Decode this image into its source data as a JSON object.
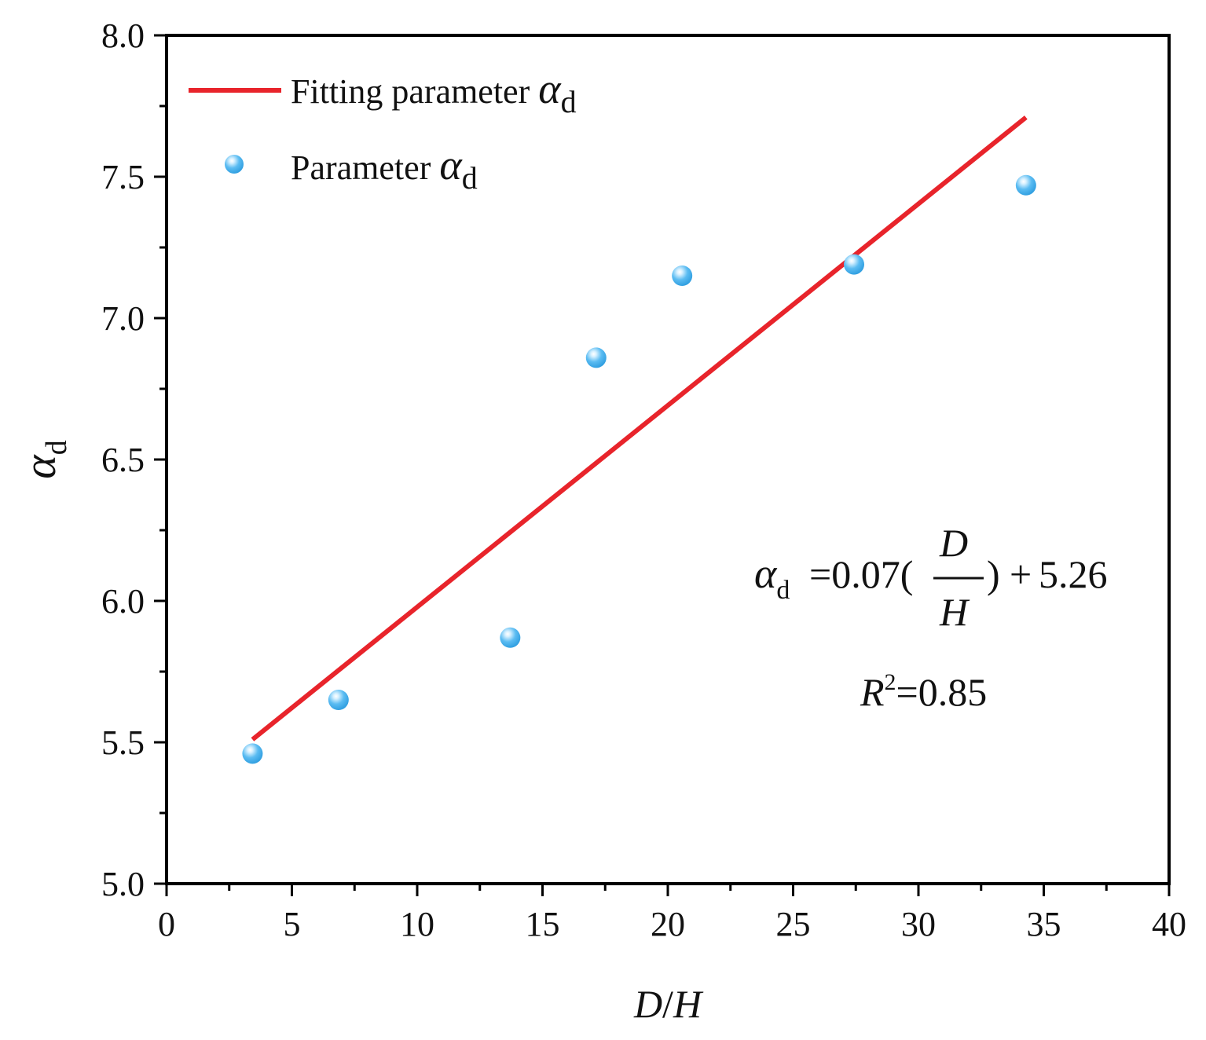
{
  "chart_data": {
    "type": "scatter",
    "title": "",
    "xlabel": "D/H",
    "ylabel": "αd",
    "ylabel_parts": {
      "symbol": "α",
      "subscript": "d"
    },
    "xlabel_parts": {
      "num": "D",
      "sep": "/",
      "den": "H"
    },
    "xlim": [
      0,
      40
    ],
    "ylim": [
      5.0,
      8.0
    ],
    "x_ticks": [
      0,
      5,
      10,
      15,
      20,
      25,
      30,
      35,
      40
    ],
    "x_tick_labels": [
      "0",
      "5",
      "10",
      "15",
      "20",
      "25",
      "30",
      "35",
      "40"
    ],
    "y_ticks": [
      5.0,
      5.5,
      6.0,
      6.5,
      7.0,
      7.5,
      8.0
    ],
    "y_tick_labels": [
      "5.0",
      "5.5",
      "6.0",
      "6.5",
      "7.0",
      "7.5",
      "8.0"
    ],
    "x_minor_step": 2.5,
    "y_minor_step": 0.25,
    "grid": false,
    "series": [
      {
        "name": "Parameter αd",
        "kind": "scatter",
        "color": "#5bbcf2",
        "x": [
          3.43,
          6.86,
          13.71,
          17.14,
          20.57,
          27.43,
          34.29
        ],
        "y": [
          5.46,
          5.65,
          5.87,
          6.86,
          7.15,
          7.19,
          7.47
        ]
      },
      {
        "name": "Fitting parameter αd",
        "kind": "line",
        "color": "#e8242b",
        "x": [
          3.43,
          34.29
        ],
        "y": [
          5.51,
          7.71
        ]
      }
    ],
    "legend": {
      "placement": "top-left",
      "items": [
        {
          "label": "Fitting parameter ",
          "symbol": "α",
          "subscript": "d"
        },
        {
          "label": "Parameter ",
          "symbol": "α",
          "subscript": "d"
        }
      ]
    },
    "annotations": {
      "equation": {
        "lhs_symbol": "α",
        "lhs_subscript": "d",
        "coef": "=0.07(",
        "frac_num": "D",
        "frac_den": "H",
        "tail": ")",
        "plus": "+",
        "const": "5.26"
      },
      "r2": {
        "symbol": "R",
        "power": "2",
        "value": "=0.85"
      }
    }
  }
}
